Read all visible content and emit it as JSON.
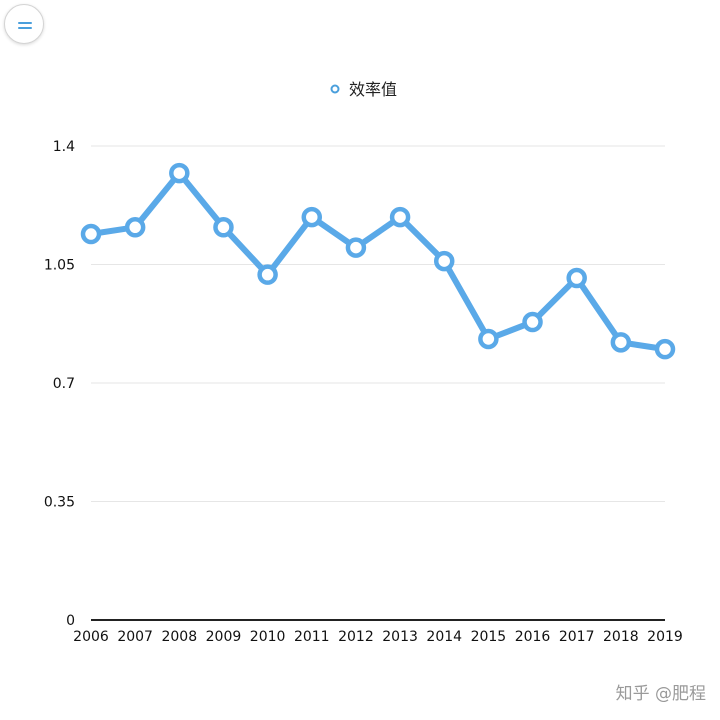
{
  "menu": {
    "icon": "menu-icon"
  },
  "watermark": "知乎 @肥程",
  "colors": {
    "series": "#5aa9e8",
    "marker_fill": "#ffffff",
    "grid": "#e6e6e6",
    "axis": "#222222",
    "legend_marker": "#4a9fdc"
  },
  "chart_data": {
    "type": "line",
    "categories": [
      "2006",
      "2007",
      "2008",
      "2009",
      "2010",
      "2011",
      "2012",
      "2013",
      "2014",
      "2015",
      "2016",
      "2017",
      "2018",
      "2019"
    ],
    "series": [
      {
        "name": "效率值",
        "values": [
          1.14,
          1.16,
          1.32,
          1.16,
          1.02,
          1.19,
          1.1,
          1.19,
          1.06,
          0.83,
          0.88,
          1.01,
          0.82,
          0.8
        ]
      }
    ],
    "yticks": [
      "0",
      "0.35",
      "0.7",
      "1.05",
      "1.4"
    ],
    "ylim": [
      0,
      1.4
    ],
    "grid": true,
    "legend": "top-center"
  }
}
